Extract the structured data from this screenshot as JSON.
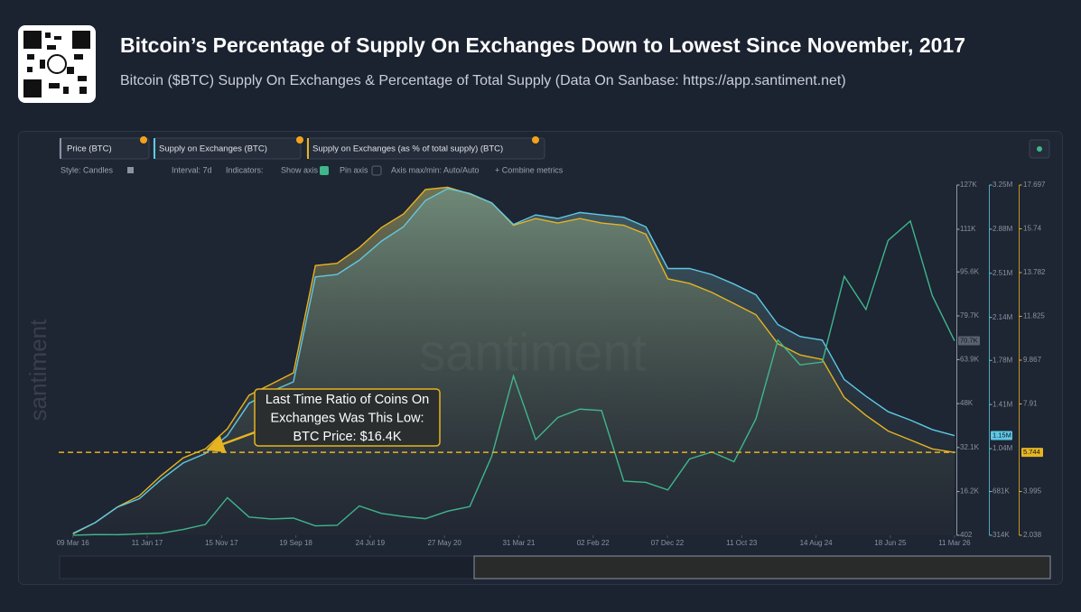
{
  "header": {
    "title": "Bitcoin’s Percentage of Supply On Exchanges Down to Lowest Since November, 2017",
    "subtitle": "Bitcoin ($BTC) Supply On Exchanges & Percentage of Total Supply (Data On Sanbase: https://app.santiment.net)"
  },
  "toolbar": {
    "tabs": [
      "Price (BTC)",
      "Supply on Exchanges (BTC)",
      "Supply on Exchanges (as % of total supply) (BTC)"
    ],
    "options": [
      "Style: Candles",
      "Interval: 7d",
      "Indicators:",
      "Show axis",
      "Pin axis",
      "Axis max/min: Auto/Auto",
      "+ Combine metrics"
    ]
  },
  "chart_data": {
    "type": "line",
    "watermark": "santiment",
    "annotation": [
      "Last Time Ratio of Coins On",
      "Exchanges Was This Low:",
      "BTC Price: $16.4K"
    ],
    "x": [
      "2016-03-09",
      "2016-06-09",
      "2016-09-09",
      "2016-12-09",
      "2017-03-09",
      "2017-06-09",
      "2017-09-09",
      "2017-12-09",
      "2018-03-09",
      "2018-06-09",
      "2018-09-09",
      "2018-12-09",
      "2019-03-09",
      "2019-06-09",
      "2019-09-09",
      "2019-12-09",
      "2020-03-09",
      "2020-06-09",
      "2020-09-09",
      "2020-12-09",
      "2021-03-09",
      "2021-06-09",
      "2021-09-09",
      "2021-12-09",
      "2022-03-09",
      "2022-06-09",
      "2022-09-09",
      "2022-12-09",
      "2023-03-09",
      "2023-06-09",
      "2023-09-09",
      "2023-12-09",
      "2024-03-09",
      "2024-06-09",
      "2024-09-09",
      "2024-12-09",
      "2025-03-09",
      "2025-06-09",
      "2025-09-09",
      "2025-12-09",
      "2026-03-11"
    ],
    "xlim": [
      "2016-01-10",
      "2026-03-15"
    ],
    "xticks": [
      {
        "value": "2016-03-09",
        "label": "09 Mar 16"
      },
      {
        "value": "2017-01-11",
        "label": "11 Jan 17"
      },
      {
        "value": "2017-11-15",
        "label": "15 Nov 17"
      },
      {
        "value": "2018-09-19",
        "label": "19 Sep 18"
      },
      {
        "value": "2019-07-24",
        "label": "24 Jul 19"
      },
      {
        "value": "2020-05-27",
        "label": "27 May 20"
      },
      {
        "value": "2021-03-31",
        "label": "31 Mar 21"
      },
      {
        "value": "2022-02-02",
        "label": "02 Feb 22"
      },
      {
        "value": "2022-12-07",
        "label": "07 Dec 22"
      },
      {
        "value": "2023-10-11",
        "label": "11 Oct 23"
      },
      {
        "value": "2024-08-14",
        "label": "14 Aug 24"
      },
      {
        "value": "2025-06-18",
        "label": "18 Jun 25"
      },
      {
        "value": "2026-03-11",
        "label": "11 Mar 26"
      }
    ],
    "ylim": [
      402,
      127000
    ],
    "yticks": [
      402,
      {
        "value": 16200,
        "label": "16.2K"
      },
      {
        "value": 32100,
        "label": "32.1K"
      },
      {
        "value": 48000,
        "label": "48K"
      },
      {
        "value": 63900,
        "label": "63.9K"
      },
      {
        "value": 79700,
        "label": "79.7K"
      },
      {
        "value": 95600,
        "label": "95.6K"
      },
      {
        "value": 111000,
        "label": "111K"
      },
      {
        "value": 127000,
        "label": "127K"
      }
    ],
    "y2lim": [
      314000,
      3250000
    ],
    "y2ticks": [
      {
        "value": 314000,
        "label": "314K"
      },
      {
        "value": 681000,
        "label": "681K"
      },
      {
        "value": 1040000,
        "label": "1.04M"
      },
      {
        "value": 1410000,
        "label": "1.41M"
      },
      {
        "value": 1780000,
        "label": "1.78M"
      },
      {
        "value": 2140000,
        "label": "2.14M"
      },
      {
        "value": 2510000,
        "label": "2.51M"
      },
      {
        "value": 2880000,
        "label": "2.88M"
      },
      {
        "value": 3250000,
        "label": "3.25M"
      }
    ],
    "y3lim": [
      2.038,
      17.697
    ],
    "y3ticks": [
      2.038,
      3.995,
      7.91,
      9.867,
      11.825,
      13.782,
      15.74,
      17.697
    ],
    "series": [
      {
        "name": "Price (BTC)",
        "color": "#3fb68b",
        "axis": "y",
        "values": [
          420,
          650,
          610,
          900,
          1100,
          2500,
          4300,
          14000,
          7000,
          6300,
          6600,
          3800,
          4000,
          11000,
          8300,
          7200,
          6400,
          9100,
          10800,
          29000,
          58000,
          35000,
          43000,
          46000,
          45500,
          20000,
          19500,
          16800,
          28000,
          30500,
          27000,
          42500,
          71000,
          62000,
          63000,
          94000,
          82000,
          107000,
          114000,
          87000,
          70700
        ],
        "value_labels": [
          null,
          null,
          null,
          null,
          null,
          null,
          null,
          null,
          null,
          null,
          null,
          null,
          null,
          null,
          null,
          null,
          null,
          null,
          null,
          null,
          null,
          null,
          null,
          null,
          null,
          null,
          null,
          null,
          null,
          null,
          null,
          null,
          null,
          null,
          null,
          null,
          null,
          null,
          null,
          null,
          "70.7K"
        ]
      },
      {
        "name": "Supply on Exchanges (BTC)",
        "color": "#5ec8e5",
        "axis": "y2",
        "values": [
          330000,
          420000,
          550000,
          620000,
          780000,
          920000,
          1000000,
          1150000,
          1420000,
          1520000,
          1600000,
          2480000,
          2500000,
          2620000,
          2780000,
          2900000,
          3120000,
          3220000,
          3180000,
          3100000,
          2920000,
          3000000,
          2970000,
          3020000,
          3000000,
          2980000,
          2900000,
          2550000,
          2550000,
          2500000,
          2420000,
          2330000,
          2080000,
          1980000,
          1950000,
          1620000,
          1480000,
          1350000,
          1280000,
          1200000,
          1150000
        ],
        "value_labels": [
          null,
          null,
          null,
          null,
          null,
          null,
          null,
          null,
          null,
          null,
          null,
          null,
          null,
          null,
          null,
          null,
          null,
          null,
          null,
          null,
          null,
          null,
          null,
          null,
          null,
          null,
          null,
          null,
          null,
          null,
          null,
          null,
          null,
          null,
          null,
          null,
          null,
          null,
          null,
          null,
          "1.15M"
        ]
      },
      {
        "name": "Supply on Exchanges (as % of total supply) (BTC)",
        "color": "#e6b422",
        "axis": "y3",
        "values": [
          2.1,
          2.6,
          3.3,
          3.8,
          4.7,
          5.5,
          5.9,
          6.8,
          8.3,
          8.8,
          9.3,
          14.1,
          14.2,
          14.9,
          15.8,
          16.4,
          17.5,
          17.6,
          17.3,
          16.9,
          15.9,
          16.2,
          16.0,
          16.2,
          16.0,
          15.9,
          15.5,
          13.5,
          13.3,
          12.9,
          12.4,
          11.9,
          10.6,
          10.1,
          9.9,
          8.2,
          7.4,
          6.7,
          6.3,
          5.9,
          5.744
        ],
        "value_labels": [
          null,
          null,
          null,
          null,
          null,
          null,
          null,
          null,
          null,
          null,
          null,
          null,
          null,
          null,
          null,
          null,
          null,
          null,
          null,
          null,
          null,
          null,
          null,
          null,
          null,
          null,
          null,
          null,
          null,
          null,
          null,
          null,
          null,
          null,
          null,
          null,
          null,
          null,
          null,
          null,
          "5.744"
        ]
      }
    ]
  }
}
